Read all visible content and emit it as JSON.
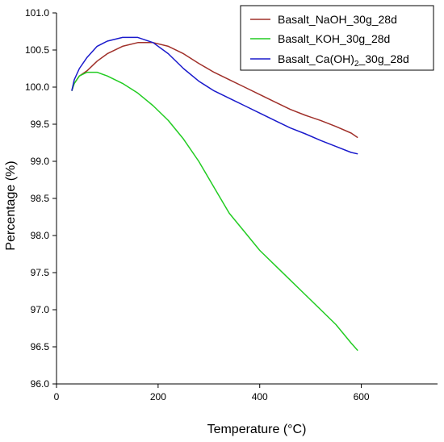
{
  "chart_data": {
    "type": "line",
    "xlabel": "Temperature (°C)",
    "ylabel": "Percentage (%)",
    "xlim": [
      0,
      750
    ],
    "ylim": [
      96.0,
      101.0
    ],
    "xticks": [
      0,
      200,
      400,
      600
    ],
    "yticks": [
      96.0,
      96.5,
      97.0,
      97.5,
      98.0,
      98.5,
      99.0,
      99.5,
      100.0,
      100.5,
      101.0
    ],
    "grid": false,
    "legend_position": "top-right",
    "series": [
      {
        "name": "Basalt_NaOH_30g_28d",
        "legend_main": "Basalt_NaOH_30g_28d",
        "legend_sub": "",
        "legend_tail": "",
        "color": "#a0302a",
        "points": [
          [
            30,
            99.95
          ],
          [
            35,
            100.05
          ],
          [
            45,
            100.15
          ],
          [
            60,
            100.22
          ],
          [
            80,
            100.35
          ],
          [
            100,
            100.45
          ],
          [
            130,
            100.55
          ],
          [
            160,
            100.6
          ],
          [
            190,
            100.6
          ],
          [
            220,
            100.55
          ],
          [
            250,
            100.45
          ],
          [
            280,
            100.32
          ],
          [
            310,
            100.2
          ],
          [
            340,
            100.1
          ],
          [
            370,
            100.0
          ],
          [
            400,
            99.9
          ],
          [
            430,
            99.8
          ],
          [
            460,
            99.7
          ],
          [
            490,
            99.62
          ],
          [
            520,
            99.55
          ],
          [
            550,
            99.47
          ],
          [
            580,
            99.38
          ],
          [
            593,
            99.32
          ]
        ]
      },
      {
        "name": "Basalt_KOH_30g_28d",
        "legend_main": "Basalt_KOH_30g_28d",
        "legend_sub": "",
        "legend_tail": "",
        "color": "#22cc22",
        "points": [
          [
            30,
            99.95
          ],
          [
            35,
            100.05
          ],
          [
            45,
            100.15
          ],
          [
            60,
            100.2
          ],
          [
            80,
            100.2
          ],
          [
            100,
            100.15
          ],
          [
            130,
            100.05
          ],
          [
            160,
            99.92
          ],
          [
            190,
            99.75
          ],
          [
            220,
            99.55
          ],
          [
            250,
            99.3
          ],
          [
            280,
            99.0
          ],
          [
            310,
            98.65
          ],
          [
            340,
            98.3
          ],
          [
            370,
            98.05
          ],
          [
            400,
            97.8
          ],
          [
            430,
            97.6
          ],
          [
            460,
            97.4
          ],
          [
            490,
            97.2
          ],
          [
            520,
            97.0
          ],
          [
            550,
            96.8
          ],
          [
            580,
            96.55
          ],
          [
            593,
            96.45
          ]
        ]
      },
      {
        "name": "Basalt_Ca(OH)2_30g_28d",
        "legend_main": "Basalt_Ca(OH)",
        "legend_sub": "2",
        "legend_tail": "_30g_28d",
        "color": "#1a1acc",
        "points": [
          [
            30,
            99.95
          ],
          [
            35,
            100.1
          ],
          [
            45,
            100.25
          ],
          [
            60,
            100.4
          ],
          [
            80,
            100.55
          ],
          [
            100,
            100.62
          ],
          [
            130,
            100.67
          ],
          [
            160,
            100.67
          ],
          [
            190,
            100.6
          ],
          [
            220,
            100.45
          ],
          [
            250,
            100.25
          ],
          [
            280,
            100.08
          ],
          [
            310,
            99.95
          ],
          [
            340,
            99.85
          ],
          [
            370,
            99.75
          ],
          [
            400,
            99.65
          ],
          [
            430,
            99.55
          ],
          [
            460,
            99.45
          ],
          [
            490,
            99.37
          ],
          [
            520,
            99.28
          ],
          [
            550,
            99.2
          ],
          [
            580,
            99.12
          ],
          [
            593,
            99.1
          ]
        ]
      }
    ]
  }
}
